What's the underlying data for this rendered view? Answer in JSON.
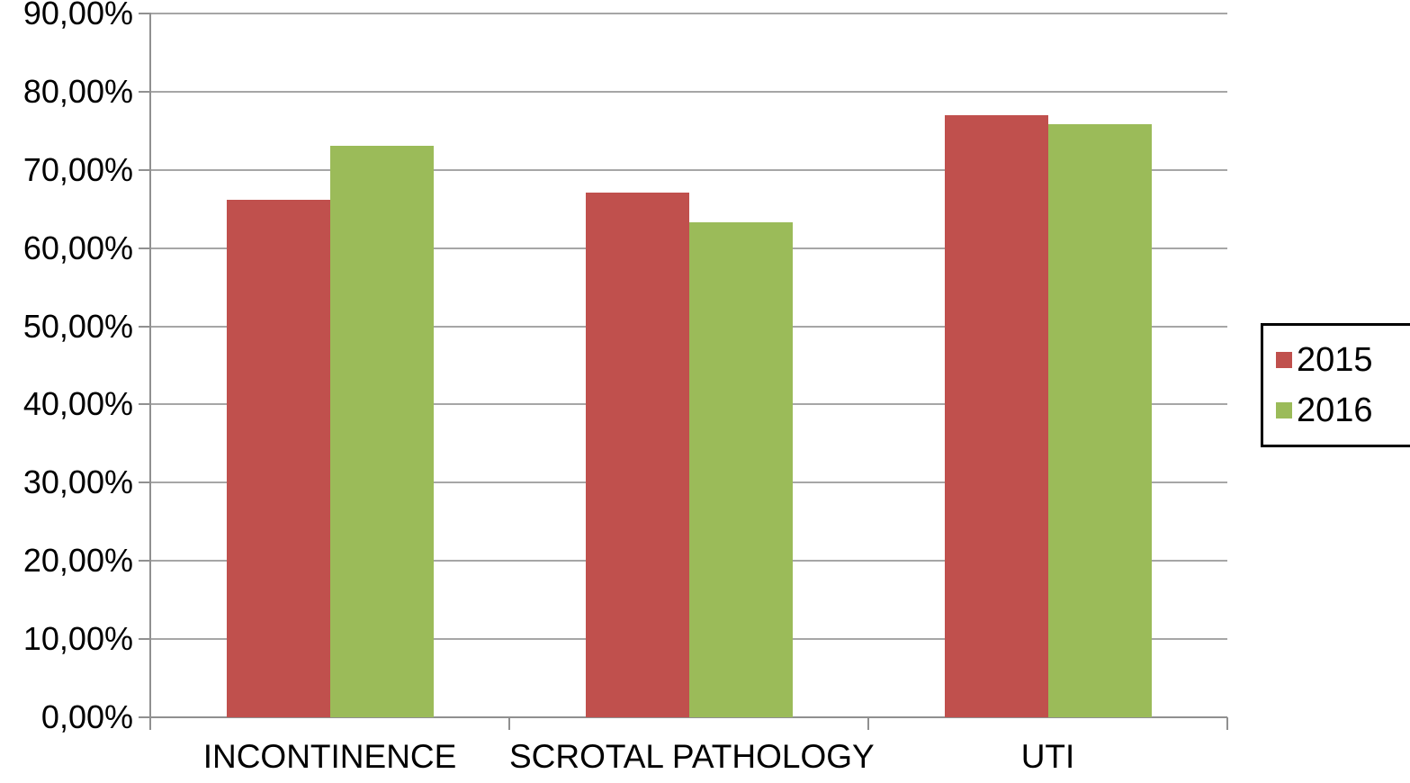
{
  "chart_data": {
    "type": "bar",
    "title": "",
    "xlabel": "",
    "ylabel": "",
    "categories": [
      "INCONTINENCE",
      "SCROTAL PATHOLOGY",
      "UTI"
    ],
    "series": [
      {
        "name": "2015",
        "color": "#C0504D",
        "values": [
          66.2,
          67.1,
          77.0
        ]
      },
      {
        "name": "2016",
        "color": "#9BBB59",
        "values": [
          73.1,
          63.3,
          75.8
        ]
      }
    ],
    "ylim": [
      0,
      90
    ],
    "ytick_step": 10,
    "ytick_labels": [
      "0,00%",
      "10,00%",
      "20,00%",
      "30,00%",
      "40,00%",
      "50,00%",
      "60,00%",
      "70,00%",
      "80,00%",
      "90,00%"
    ],
    "grid": true,
    "legend_position": "right",
    "legend_items": [
      {
        "label": "2015",
        "color": "#C0504D"
      },
      {
        "label": "2016",
        "color": "#9BBB59"
      }
    ]
  },
  "colors": {
    "background": "#FFFFFF",
    "gridline": "#A6A6A6",
    "axis": "#909090",
    "text": "#000000",
    "series_2015": "#C0504D",
    "series_2016": "#9BBB59"
  }
}
